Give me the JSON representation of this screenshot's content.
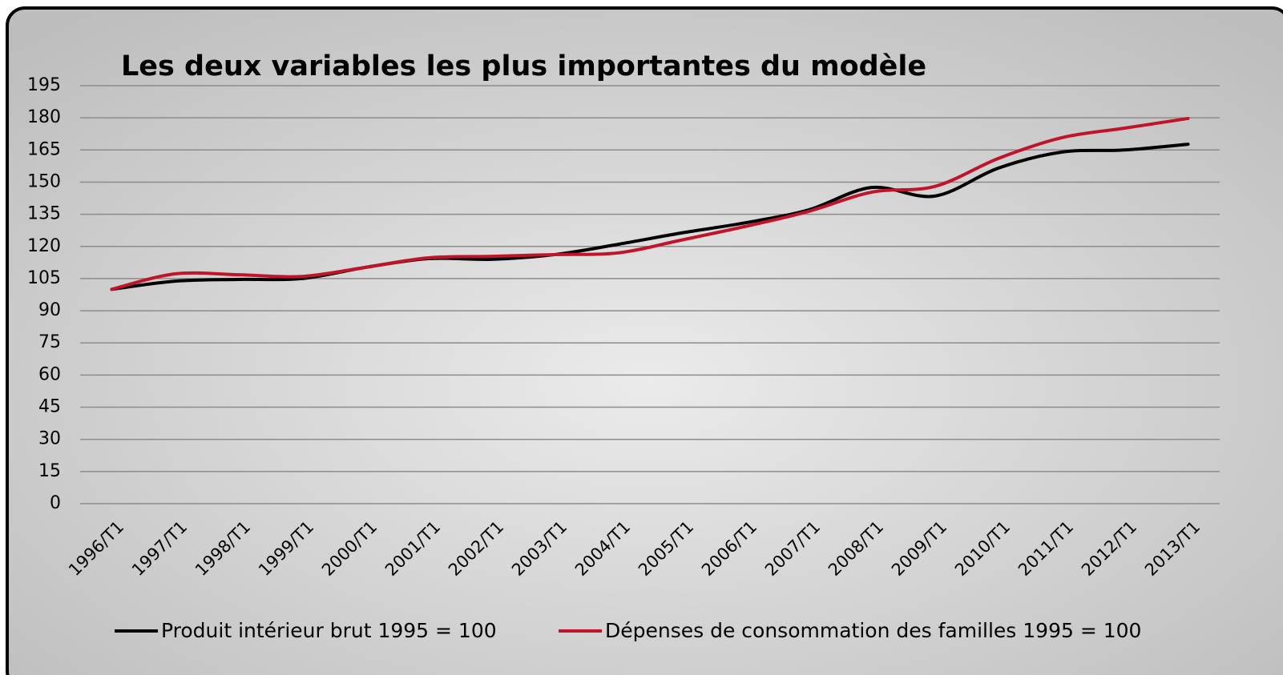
{
  "chart_data": {
    "type": "line",
    "title": "Les deux variables les plus importantes du modèle",
    "categories": [
      "1996/T1",
      "1997/T1",
      "1998/T1",
      "1999/T1",
      "2000/T1",
      "2001/T1",
      "2002/T1",
      "2003/T1",
      "2004/T1",
      "2005/T1",
      "2006/T1",
      "2007/T1",
      "2008/T1",
      "2009/T1",
      "2010/T1",
      "2011/T1",
      "2012/T1",
      "2013/T1"
    ],
    "series": [
      {
        "name": "Produit intérieur brut 1995 = 100",
        "color": "#000000",
        "values": [
          100,
          103.8,
          104.6,
          105,
          110.2,
          114.3,
          114,
          116.2,
          121,
          126.3,
          131,
          137,
          147.5,
          143.5,
          156.5,
          164,
          165,
          167.7
        ]
      },
      {
        "name": "Dépenses de consommation des familles 1995 = 100",
        "color": "#c0142a",
        "values": [
          100,
          107.2,
          106.8,
          106,
          110.2,
          114.7,
          115.4,
          116.2,
          117,
          123,
          129.3,
          136.3,
          145.3,
          148,
          161,
          170.7,
          175.2,
          179.7
        ]
      }
    ],
    "ylim": [
      0,
      195
    ],
    "yticks": [
      0,
      15,
      30,
      45,
      60,
      75,
      90,
      105,
      120,
      135,
      150,
      165,
      180,
      195
    ],
    "grid": true,
    "legend": "bottom"
  }
}
